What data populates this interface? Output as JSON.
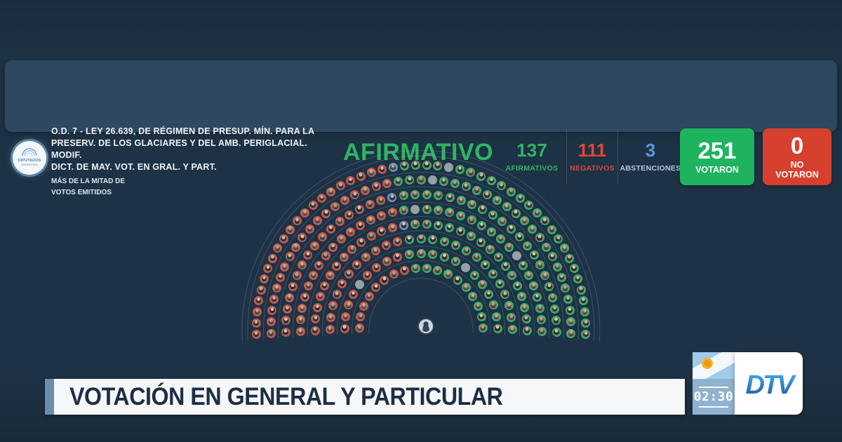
{
  "colors": {
    "background": "#1e3245",
    "banner": "#2d4860",
    "lower_third_strip": "#6d8caa",
    "timer_box": "#8fb2d0",
    "result_green": "#2eb563"
  },
  "header": {
    "logo": {
      "line1": "DIPUTADOS",
      "line2": "ARGENTINA"
    },
    "order_lines": [
      "O.D. 7 - LEY 26.639, DE RÉGIMEN DE PRESUP. MÍN. PARA LA",
      "PRESERV. DE LOS GLACIARES Y DEL AMB. PERIGLACIAL. MODIF.",
      "DICT. DE MAY. VOT. EN GRAL. Y PART."
    ],
    "sub_lines": [
      "MÁS DE LA MITAD DE",
      "VOTOS EMITIDOS"
    ],
    "result_label": "AFIRMATIVO",
    "result_color": "#2eb563",
    "stats": [
      {
        "value": "137",
        "label": "AFIRMATIVOS",
        "color": "#2eb563",
        "label_color": "#2eb563"
      },
      {
        "value": "111",
        "label": "NEGATIVOS",
        "color": "#e0483a",
        "label_color": "#d94a3c"
      },
      {
        "value": "3",
        "label": "ABSTENCIONES",
        "color": "#5b94d8",
        "label_color": "#b6c8db"
      }
    ],
    "voted_box": {
      "value": "251",
      "label": "VOTARON",
      "bg": "#1fb25f"
    },
    "notvoted_box": {
      "value": "0",
      "label": "NO VOTARON",
      "bg": "#d6402e"
    }
  },
  "chart_data": {
    "type": "parliament",
    "total_seats": 257,
    "rows": [
      18,
      21,
      25,
      30,
      34,
      38,
      43,
      48
    ],
    "results": {
      "negativos": {
        "count": 111,
        "color": "#d25044"
      },
      "abstenciones": {
        "count": 3,
        "color": "#5c98d6"
      },
      "afirmativos": {
        "count": 137,
        "color": "#31b466"
      },
      "ausentes": {
        "count": 6,
        "color": "#97a0a7"
      }
    },
    "fill_order": [
      "negativos",
      "abstenciones",
      "afirmativos"
    ],
    "absent_seat_positions": [
      53,
      124,
      134,
      143,
      176,
      199
    ],
    "arrangement": "semicircle, negativos left / afirmativos right",
    "president_seat": 1
  },
  "lower_third": {
    "title": "VOTACIÓN EN GENERAL Y PARTICULAR",
    "timer": "02:30",
    "channel": "DTV"
  }
}
